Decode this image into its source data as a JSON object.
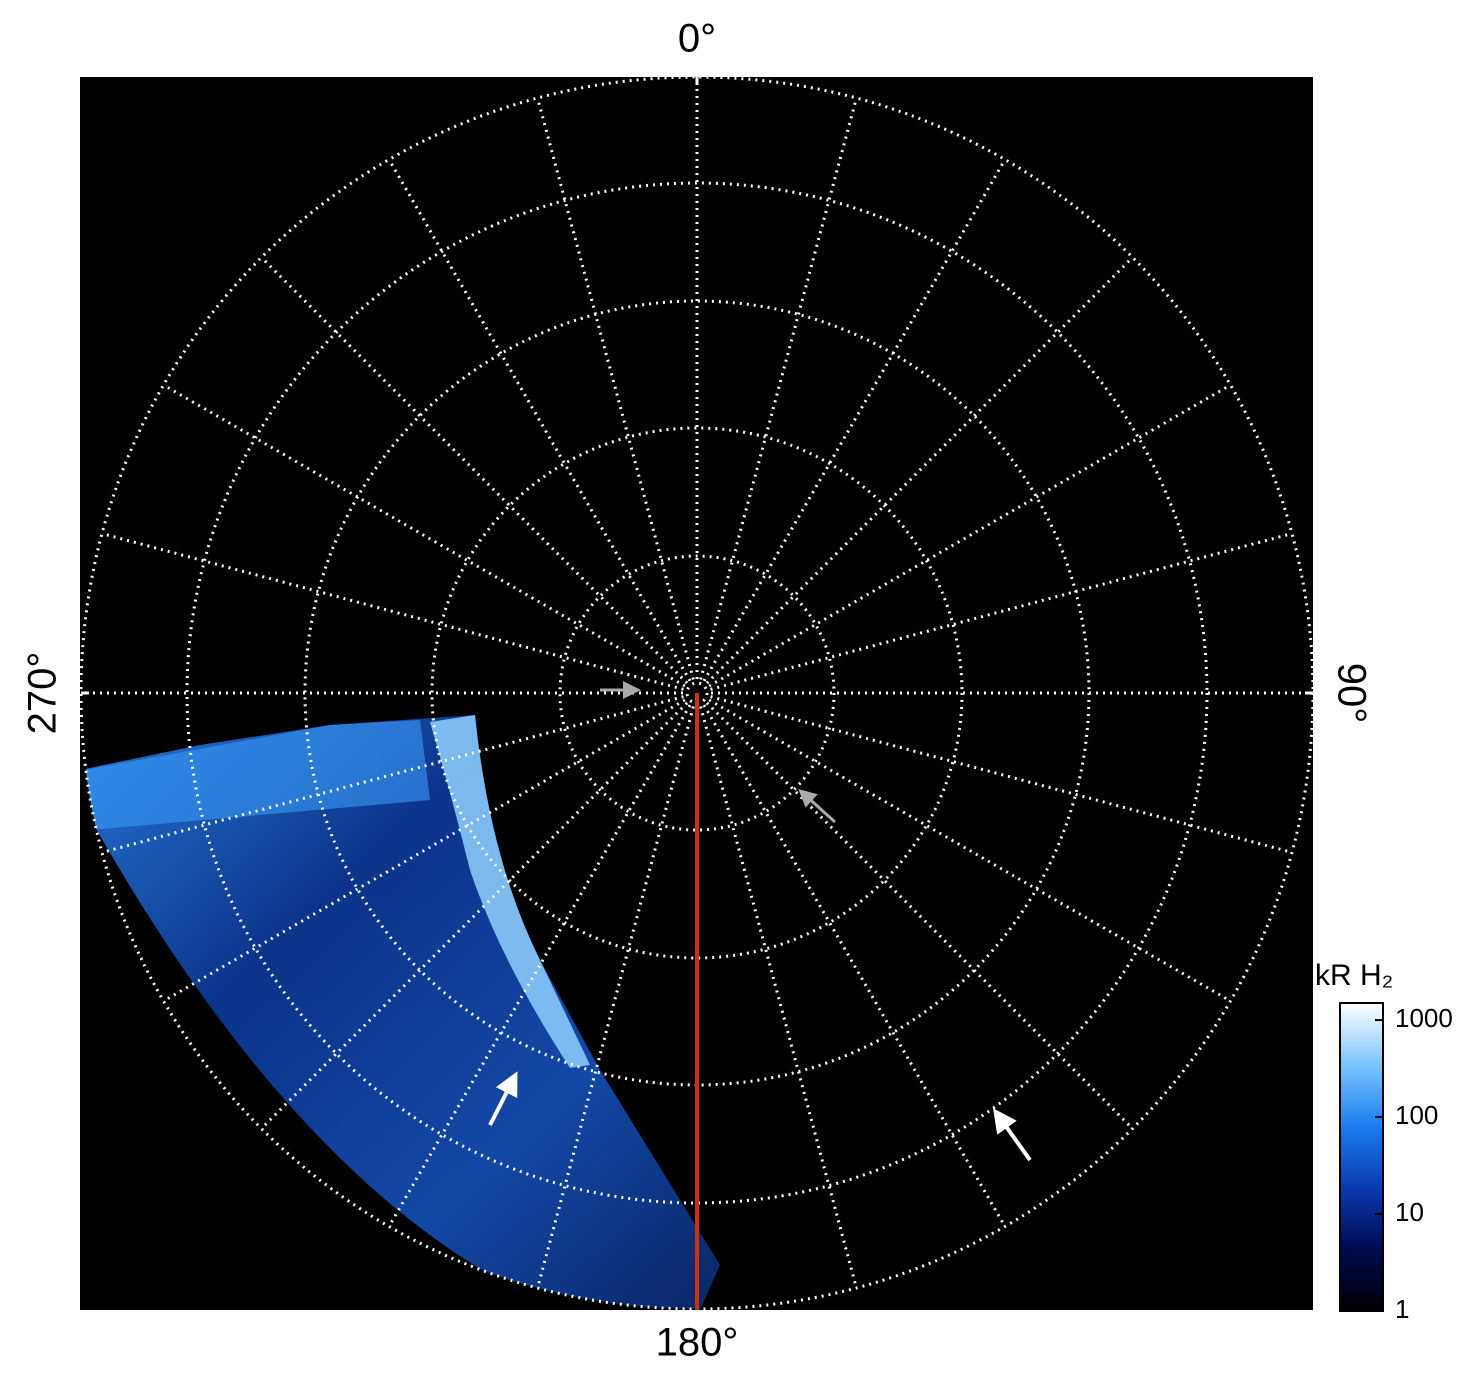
{
  "chart_data": {
    "type": "polar-image",
    "angle_ticks": [
      {
        "value": 0,
        "label": "0°"
      },
      {
        "value": 90,
        "label": "90°"
      },
      {
        "value": 180,
        "label": "180°"
      },
      {
        "value": 270,
        "label": "270°"
      }
    ],
    "colorbar": {
      "label": "kR H₂",
      "scale": "log",
      "lim": [
        1,
        1500
      ],
      "ticks": [
        1,
        10,
        100,
        1000
      ],
      "colors": [
        "#000000",
        "#000a50",
        "#0a3ab0",
        "#1a7ef0",
        "#7cc4ff",
        "#ffffff"
      ]
    },
    "background": "#000000",
    "grid": true,
    "meridian_color": "#d03010"
  }
}
